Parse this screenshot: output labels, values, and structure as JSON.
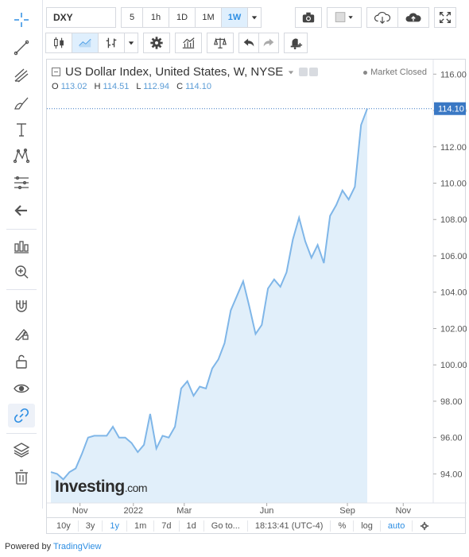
{
  "toolbar": {
    "symbol": "DXY",
    "intervals": [
      "5",
      "1h",
      "1D",
      "1M",
      "1W"
    ],
    "selected_interval": "1W"
  },
  "legend": {
    "title": "US Dollar Index, United States, W, NYSE",
    "o_label": "O",
    "o_value": "113.02",
    "h_label": "H",
    "h_value": "114.51",
    "l_label": "L",
    "l_value": "112.94",
    "c_label": "C",
    "c_value": "114.10",
    "market_status": "Market Closed"
  },
  "watermark": {
    "brand": "Investing",
    "suffix": ".com"
  },
  "colors": {
    "line": "#7fb6e8",
    "area": "#e1effa",
    "price_tag": "#3a78c4",
    "accent": "#2d8ee3"
  },
  "range_bar": {
    "ranges": [
      "10y",
      "3y",
      "1y",
      "1m",
      "7d",
      "1d"
    ],
    "selected_range": "1y",
    "goto": "Go to...",
    "time": "18:13:41 (UTC-4)",
    "percent": "%",
    "log": "log",
    "auto": "auto"
  },
  "footer": {
    "prefix": "Powered by",
    "link": "TradingView"
  },
  "chart_data": {
    "type": "area",
    "title": "US Dollar Index, United States, W, NYSE",
    "xlabel": "",
    "ylabel": "",
    "ylim": [
      92.4,
      116.8
    ],
    "x_tick_labels": [
      "Nov",
      "2022",
      "Mar",
      "Jun",
      "Sep",
      "Nov"
    ],
    "y_ticks": [
      94.0,
      96.0,
      98.0,
      100.0,
      102.0,
      104.0,
      106.0,
      108.0,
      110.0,
      112.0,
      114.0,
      116.0
    ],
    "last_value_label": "114.10",
    "grid": false,
    "series": [
      {
        "values": [
          94.1,
          94.0,
          93.7,
          94.1,
          94.3,
          95.1,
          96.0,
          96.1,
          96.1,
          96.1,
          96.6,
          96.0,
          96.0,
          95.7,
          95.2,
          95.6,
          97.3,
          95.4,
          96.1,
          96.0,
          96.6,
          98.7,
          99.1,
          98.3,
          98.8,
          98.7,
          99.8,
          100.3,
          101.2,
          103.0,
          103.8,
          104.6,
          103.2,
          101.7,
          102.2,
          104.2,
          104.7,
          104.3,
          105.1,
          106.9,
          108.1,
          106.8,
          105.9,
          106.6,
          105.6,
          108.2,
          108.8,
          109.6,
          109.1,
          109.8,
          113.2,
          114.1
        ]
      }
    ]
  }
}
